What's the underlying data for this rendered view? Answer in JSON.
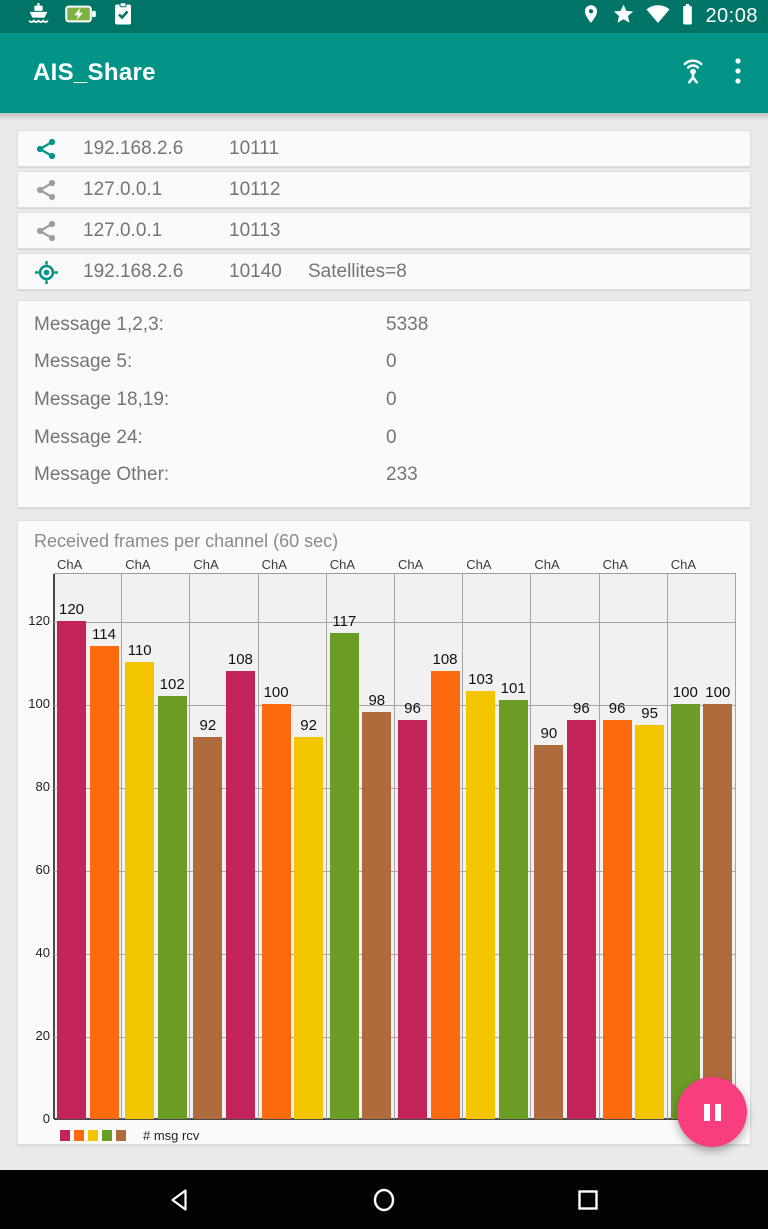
{
  "colors": {
    "status_bar": "#017468",
    "app_bar": "#019487",
    "page_bg": "#EAEAEA",
    "card_bg": "#FAFAFA",
    "fab": "#F93E80",
    "accent_teal": "#019487",
    "icon_gray": "#9E9E9E"
  },
  "status_bar": {
    "time": "20:08",
    "left_icons": [
      "ship-icon",
      "battery-charging-icon",
      "clipboard-check-icon"
    ],
    "right_icons": [
      "location-icon",
      "star-icon",
      "wifi-icon",
      "battery-icon"
    ]
  },
  "app_bar": {
    "title": "AIS_Share",
    "icons": [
      "broadcast-icon",
      "overflow-menu-icon"
    ]
  },
  "connections": [
    {
      "icon": "share-icon",
      "ip": "192.168.2.6",
      "port": "10111",
      "extra": ""
    },
    {
      "icon": "share-icon",
      "ip": "127.0.0.1",
      "port": "10112",
      "extra": ""
    },
    {
      "icon": "share-icon",
      "ip": "127.0.0.1",
      "port": "10113",
      "extra": ""
    },
    {
      "icon": "gps-icon",
      "ip": "192.168.2.6",
      "port": "10140",
      "extra": "Satellites=8"
    }
  ],
  "messages": {
    "rows": [
      {
        "label": "Message 1,2,3:",
        "value": "5338"
      },
      {
        "label": "Message 5:",
        "value": "0"
      },
      {
        "label": "Message 18,19:",
        "value": "0"
      },
      {
        "label": "Message 24:",
        "value": "0"
      },
      {
        "label": "Message Other:",
        "value": "233"
      }
    ]
  },
  "chart_data": {
    "type": "bar",
    "title": "Received frames per channel (60 sec)",
    "column_labels": [
      "ChA",
      "ChA",
      "ChA",
      "ChA",
      "ChA",
      "ChA",
      "ChA",
      "ChA",
      "ChA",
      "ChA"
    ],
    "bars_per_column": 2,
    "values": [
      120,
      114,
      110,
      102,
      92,
      108,
      100,
      92,
      117,
      98,
      96,
      108,
      103,
      101,
      90,
      96,
      96,
      95,
      100,
      100
    ],
    "palette": [
      "#C2235A",
      "#FC6A0D",
      "#F2C500",
      "#6B9C26",
      "#AF6B3C"
    ],
    "yticks": [
      0,
      20,
      40,
      60,
      80,
      100,
      120
    ],
    "ylim": [
      0,
      131.5
    ],
    "grid": true,
    "legend": {
      "label": "# msg rcv",
      "position": "bottom-left"
    }
  },
  "fab": {
    "icon": "pause-icon"
  },
  "nav_bar": {
    "icons": [
      "back-icon",
      "home-icon",
      "recents-icon"
    ]
  }
}
